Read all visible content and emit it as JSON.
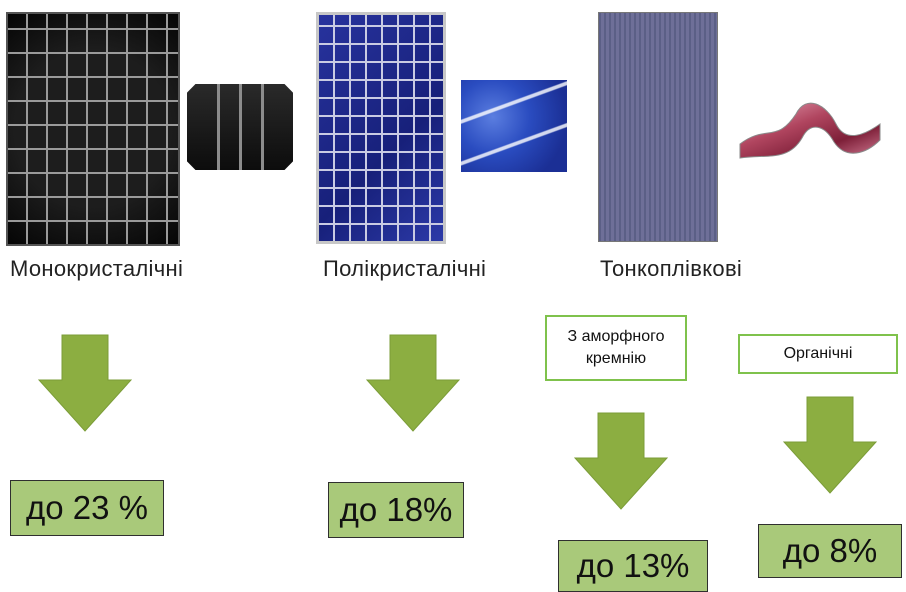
{
  "captions": {
    "mono": "Монокристалічні",
    "poly": "Полікристалічні",
    "thin": "Тонкоплівкові"
  },
  "subtypes": {
    "amorphous_line1": "З аморфного",
    "amorphous_line2": "кремнію",
    "organic": "Органічні"
  },
  "results": {
    "mono": "до 23 %",
    "poly": "до 18%",
    "amorphous": "до 13%",
    "organic": "до 8%"
  },
  "colors": {
    "arrow": "#8cae41",
    "result_box": "#a9c97a",
    "subtype_border": "#7fc24c"
  }
}
